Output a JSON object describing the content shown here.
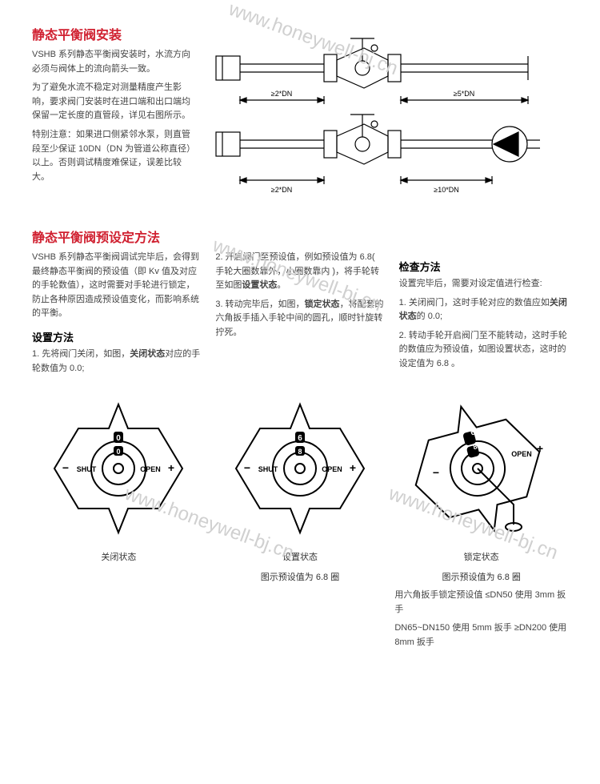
{
  "watermark": "www.honeywell-bj.cn",
  "sec1": {
    "title": "静态平衡阀安装",
    "p1": "VSHB 系列静态平衡阀安装时，水流方向必须与阀体上的流向箭头一致。",
    "p2": "为了避免水流不稳定对测量精度产生影响，要求阀门安装时在进口端和出口端均保留一定长度的直管段，详见右图所示。",
    "p3": "特别注意：如果进口侧紧邻水泵，则直管段至少保证 10DN（DN 为管道公称直径）以上。否则调试精度难保证，误差比较大。",
    "diag": {
      "l1_left": "≥2*DN",
      "l1_right": "≥5*DN",
      "l2_left": "≥2*DN",
      "l2_right": "≥10*DN"
    }
  },
  "sec2": {
    "title": "静态平衡阀预设定方法",
    "col1": {
      "p1": "VSHB 系列静态平衡阀调试完毕后，会得到最终静态平衡阀的预设值（即 Kv 值及对应的手轮数值），这时需要对手轮进行锁定，防止各种原因造成预设值变化，而影响系统的平衡。",
      "h": "设置方法",
      "p2": "1. 先将阀门关闭，如图，<b>关闭状态</b>对应的手轮数值为 0.0;"
    },
    "col2": {
      "p1": "2. 开启阀门至预设值，例如预设值为 6.8( 手轮大圈数靠外，小圈数靠内 )，将手轮转至如图<b>设置状态</b>。",
      "p2": "3. 转动完毕后，如图，<b>锁定状态</b>，将配套的六角扳手插入手轮中间的圆孔，顺时针旋转拧死。"
    },
    "col3": {
      "h": "检查方法",
      "p1": "设置完毕后，需要对设定值进行检查:",
      "p2": "1. 关闭阀门，这时手轮对应的数值应如<b>关闭状态</b>的 0.0;",
      "p3": "2. 转动手轮开启阀门至不能转动，这时手轮的数值应为预设值，如图设置状态，这时的设定值为 6.8 。"
    }
  },
  "handles": {
    "labels": {
      "shut": "SHUT",
      "open": "OPEN",
      "minus": "−",
      "plus": "+"
    },
    "h1": {
      "outer": "0",
      "inner": "0",
      "caption": "关闭状态"
    },
    "h2": {
      "outer": "6",
      "inner": "8",
      "caption1": "设置状态",
      "caption2": "图示预设值为 6.8 圈"
    },
    "h3": {
      "outer": "6",
      "inner": "8",
      "caption1": "锁定状态",
      "caption2": "图示预设值为 6.8 圈",
      "note1": "用六角扳手锁定预设值 ≤DN50 使用 3mm 扳手",
      "note2": "DN65~DN150 使用 5mm 扳手 ≥DN200 使用 8mm 扳手"
    }
  },
  "colors": {
    "accent": "#d02030",
    "text": "#333333",
    "line": "#000000"
  }
}
